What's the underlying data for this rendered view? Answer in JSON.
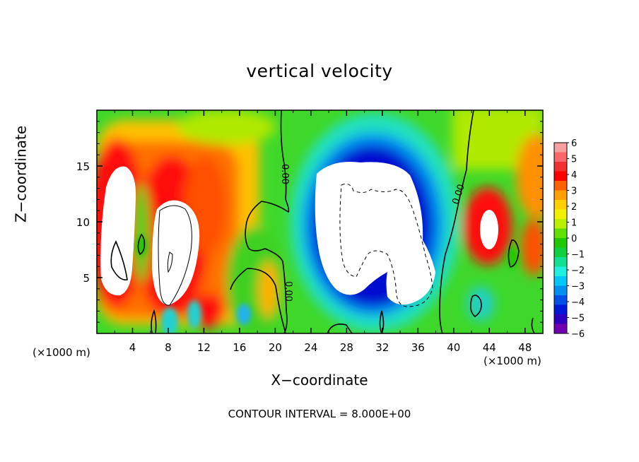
{
  "chart_data": {
    "type": "heatmap",
    "title": "vertical velocity",
    "xlabel": "X−coordinate",
    "ylabel": "Z−coordinate",
    "x_unit_left": "(×1000 m)",
    "x_unit_right": "(×1000 m)",
    "xlim": [
      0,
      50
    ],
    "ylim": [
      0,
      20
    ],
    "x_ticks": [
      4,
      8,
      12,
      16,
      20,
      24,
      28,
      32,
      36,
      40,
      44,
      48
    ],
    "y_ticks": [
      5,
      10,
      15
    ],
    "colorbar": {
      "ticks": [
        "6",
        "5",
        "4",
        "3",
        "2",
        "1",
        "0",
        "−1",
        "−2",
        "−3",
        "−4",
        "−5",
        "−6"
      ],
      "colors": [
        "#f8a0a0",
        "#f86868",
        "#f03030",
        "#ff0000",
        "#ff6000",
        "#ffa000",
        "#ffd000",
        "#f0f000",
        "#b8f000",
        "#60e000",
        "#20c800",
        "#10d040",
        "#10e090",
        "#20f0e0",
        "#00c8f8",
        "#0090f0",
        "#0050e8",
        "#0018d8",
        "#3000c0",
        "#7000b0"
      ]
    },
    "features": [
      {
        "kind": "updraft_core",
        "x": 3,
        "z": 10,
        "value": "> 6"
      },
      {
        "kind": "updraft_core",
        "x": 9,
        "z": 9,
        "value": "> 6"
      },
      {
        "kind": "updraft_core",
        "x": 44,
        "z": 10,
        "value": "> 6"
      },
      {
        "kind": "downdraft_core",
        "x": 32,
        "z": 10,
        "value": "< −6"
      }
    ],
    "contour_labels": [
      "0.00",
      "0.00",
      "0.00"
    ],
    "footer": "CONTOUR INTERVAL = 8.000E+00"
  }
}
